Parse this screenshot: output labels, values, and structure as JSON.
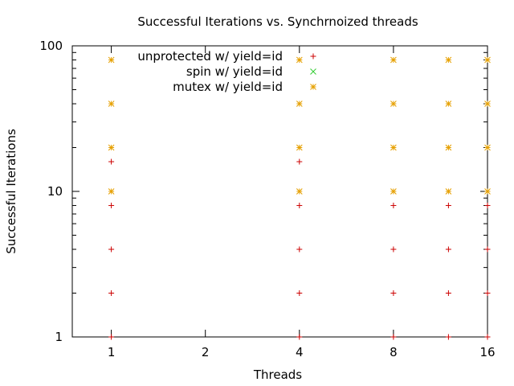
{
  "chart_data": {
    "type": "scatter",
    "title": "Successful Iterations vs. Synchrnoized threads",
    "xlabel": "Threads",
    "ylabel": "Successful Iterations",
    "x_scale": "log2",
    "y_scale": "log10",
    "xlim": [
      0.75,
      16
    ],
    "ylim": [
      1,
      100
    ],
    "x_ticks": [
      {
        "value": 1,
        "label": "1"
      },
      {
        "value": 2,
        "label": "2"
      },
      {
        "value": 4,
        "label": "4"
      },
      {
        "value": 8,
        "label": "8"
      },
      {
        "value": 16,
        "label": "16"
      }
    ],
    "y_ticks": [
      {
        "value": 1,
        "label": "1"
      },
      {
        "value": 10,
        "label": "10"
      },
      {
        "value": 100,
        "label": "100"
      }
    ],
    "legend_position": "top-center",
    "series": [
      {
        "name": "unprotected w/ yield=id",
        "marker": "plus",
        "color": "#cc0000",
        "points": [
          [
            1,
            1
          ],
          [
            1,
            2
          ],
          [
            1,
            4
          ],
          [
            1,
            8
          ],
          [
            1,
            16
          ],
          [
            4,
            1
          ],
          [
            4,
            2
          ],
          [
            4,
            4
          ],
          [
            4,
            8
          ],
          [
            4,
            16
          ],
          [
            8,
            1
          ],
          [
            8,
            2
          ],
          [
            8,
            4
          ],
          [
            8,
            8
          ],
          [
            12,
            1
          ],
          [
            12,
            2
          ],
          [
            12,
            4
          ],
          [
            12,
            8
          ],
          [
            16,
            1
          ],
          [
            16,
            2
          ],
          [
            16,
            4
          ],
          [
            16,
            8
          ]
        ]
      },
      {
        "name": "spin w/ yield=id",
        "marker": "cross",
        "color": "#33cc33",
        "points": []
      },
      {
        "name": "mutex w/ yield=id",
        "marker": "star",
        "color": "#e6a000",
        "points": [
          [
            1,
            10
          ],
          [
            1,
            20
          ],
          [
            1,
            40
          ],
          [
            1,
            80
          ],
          [
            4,
            10
          ],
          [
            4,
            20
          ],
          [
            4,
            40
          ],
          [
            4,
            80
          ],
          [
            8,
            10
          ],
          [
            8,
            20
          ],
          [
            8,
            40
          ],
          [
            8,
            80
          ],
          [
            12,
            10
          ],
          [
            12,
            20
          ],
          [
            12,
            40
          ],
          [
            12,
            80
          ],
          [
            16,
            10
          ],
          [
            16,
            20
          ],
          [
            16,
            40
          ],
          [
            16,
            80
          ]
        ]
      }
    ]
  }
}
